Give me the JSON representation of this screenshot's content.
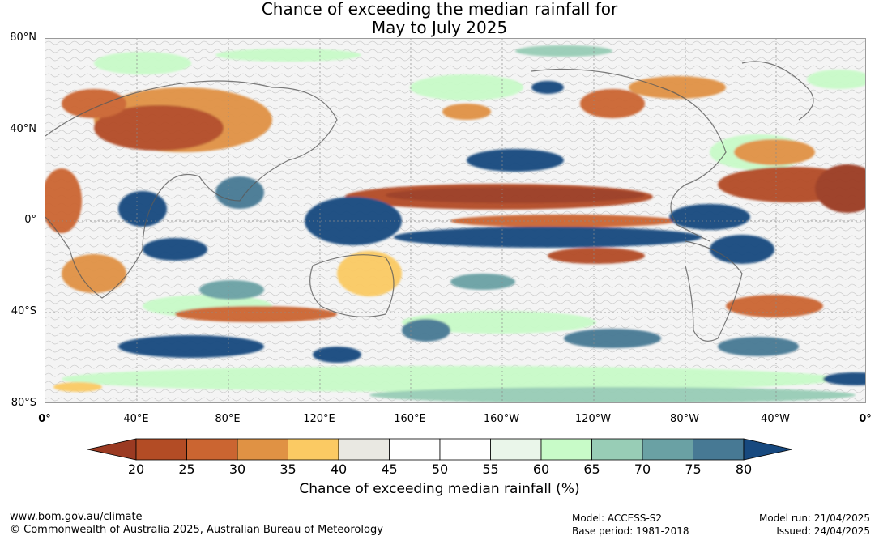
{
  "title": {
    "line1": "Chance of exceeding the median rainfall for",
    "line2": "May to July 2025"
  },
  "map": {
    "latitude_labels": [
      "80°N",
      "40°N",
      "0°",
      "40°S",
      "80°S"
    ],
    "longitude_labels": [
      "0°",
      "40°E",
      "80°E",
      "120°E",
      "160°E",
      "160°W",
      "120°W",
      "80°W",
      "40°W",
      "0°"
    ]
  },
  "colorbar": {
    "title": "Chance of exceeding median rainfall (%)",
    "ticks": [
      "20",
      "25",
      "30",
      "35",
      "40",
      "45",
      "50",
      "55",
      "60",
      "65",
      "70",
      "75",
      "80"
    ],
    "colors": [
      "#9b3a22",
      "#b34c25",
      "#cb6531",
      "#e09244",
      "#fbca63",
      "#e9e8e2",
      "#ffffff",
      "#ffffff",
      "#eaf6ea",
      "#c8fbc8",
      "#98cdb6",
      "#6aa1a4",
      "#477994",
      "#17497f"
    ]
  },
  "footer": {
    "url": "www.bom.gov.au/climate",
    "copyright": "© Commonwealth of Australia 2025, Australian Bureau of Meteorology",
    "model": "Model: ACCESS-S2",
    "base_period": "Base period: 1981-2018",
    "model_run": "Model run: 21/04/2025",
    "issued": "Issued: 24/04/2025"
  }
}
